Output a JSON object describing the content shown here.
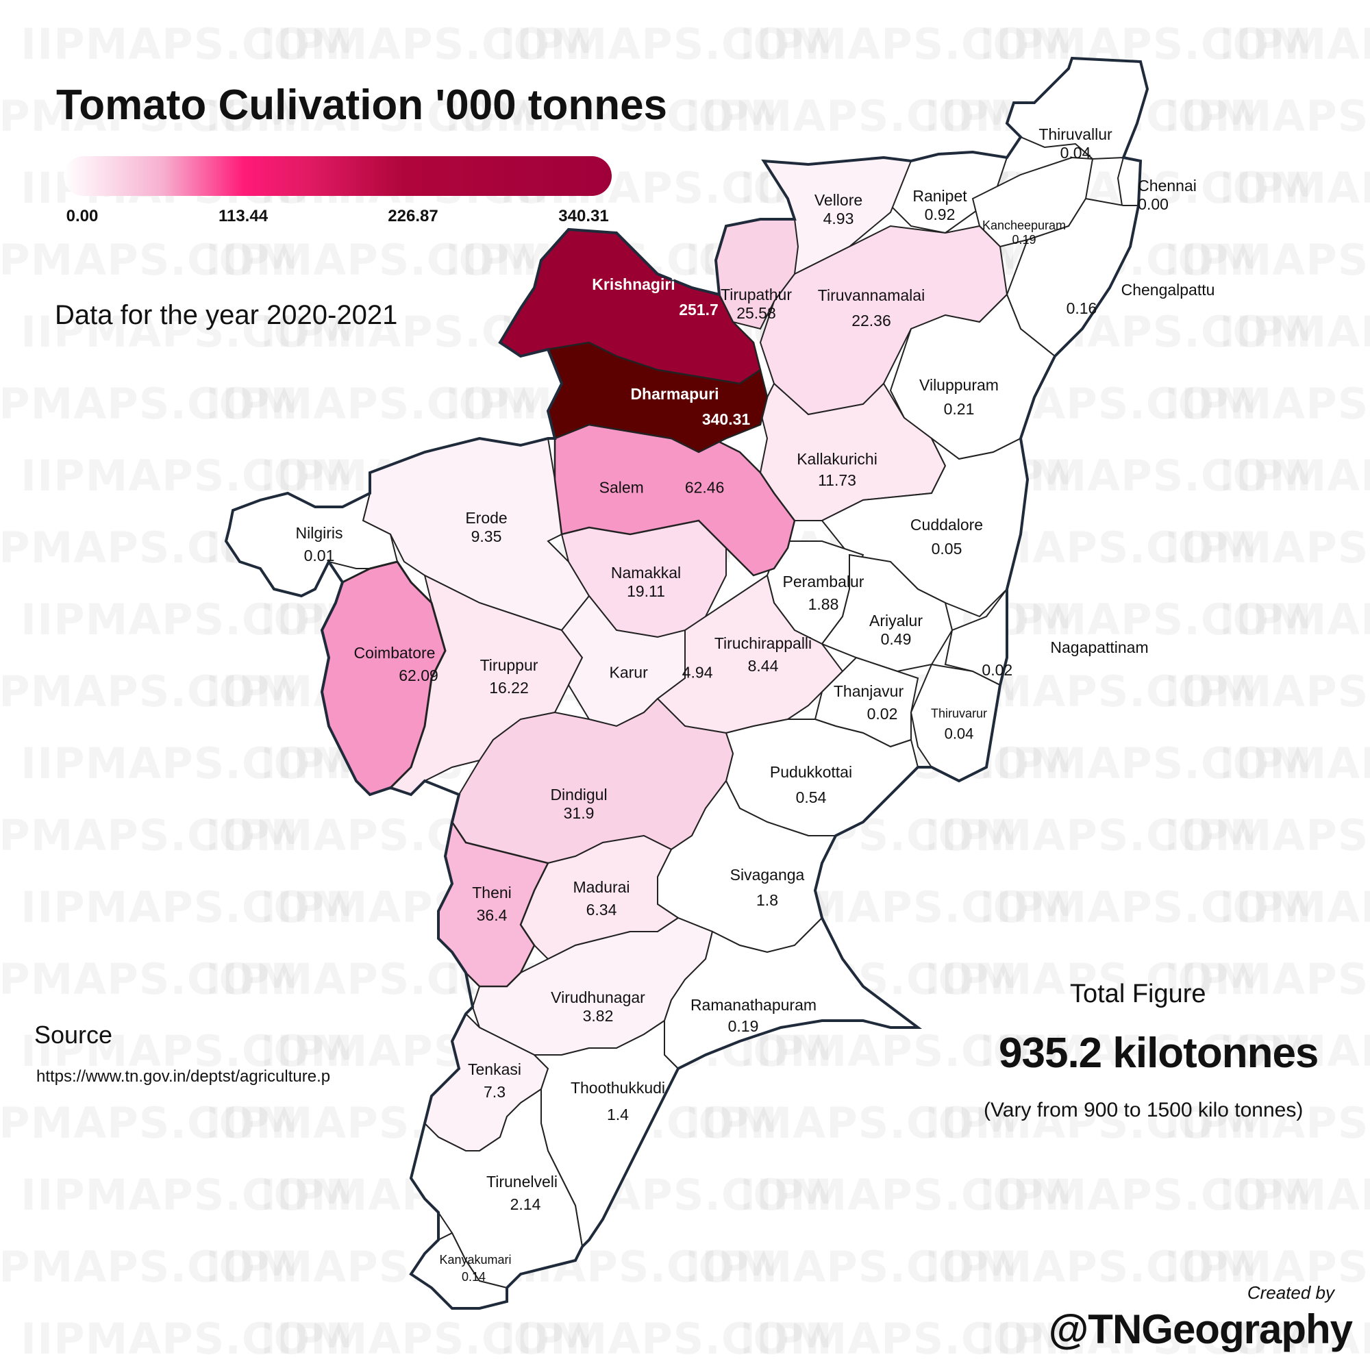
{
  "title": "Tomato Culivation '000 tonnes",
  "subtitle": "Data for the year 2020-2021",
  "watermark": "IIPMAPS.COM",
  "legend": {
    "ticks": [
      "0.00",
      "113.44",
      "226.87",
      "340.31"
    ],
    "colors": [
      "#ffffff",
      "#ff1a78",
      "#a0003a"
    ]
  },
  "districts": [
    {
      "name": "Thiruvallur",
      "value": "0.04"
    },
    {
      "name": "Chennai",
      "value": "0.00"
    },
    {
      "name": "Ranipet",
      "value": "0.92"
    },
    {
      "name": "Kancheepuram",
      "value": "0.19"
    },
    {
      "name": "Vellore",
      "value": "4.93"
    },
    {
      "name": "Chengalpattu",
      "value": "0.16"
    },
    {
      "name": "Krishnagiri",
      "value": "251.7"
    },
    {
      "name": "Tirupathur",
      "value": "25.58"
    },
    {
      "name": "Tiruvannamalai",
      "value": "22.36"
    },
    {
      "name": "Dharmapuri",
      "value": "340.31"
    },
    {
      "name": "Viluppuram",
      "value": "0.21"
    },
    {
      "name": "Kallakurichi",
      "value": "11.73"
    },
    {
      "name": "Salem",
      "value": "62.46"
    },
    {
      "name": "Erode",
      "value": "9.35"
    },
    {
      "name": "Nilgiris",
      "value": "0.01"
    },
    {
      "name": "Cuddalore",
      "value": "0.05"
    },
    {
      "name": "Namakkal",
      "value": "19.11"
    },
    {
      "name": "Perambalur",
      "value": "1.88"
    },
    {
      "name": "Ariyalur",
      "value": "0.49"
    },
    {
      "name": "Coimbatore",
      "value": "62.09"
    },
    {
      "name": "Tiruppur",
      "value": "16.22"
    },
    {
      "name": "Karur",
      "value": "4.94"
    },
    {
      "name": "Tiruchirappalli",
      "value": "8.44"
    },
    {
      "name": "Nagapattinam",
      "value": "0.02"
    },
    {
      "name": "Thanjavur",
      "value": "0.02"
    },
    {
      "name": "Thiruvarur",
      "value": "0.04"
    },
    {
      "name": "Pudukkottai",
      "value": "0.54"
    },
    {
      "name": "Dindigul",
      "value": "31.9"
    },
    {
      "name": "Sivaganga",
      "value": "1.8"
    },
    {
      "name": "Theni",
      "value": "36.4"
    },
    {
      "name": "Madurai",
      "value": "6.34"
    },
    {
      "name": "Virudhunagar",
      "value": "3.82"
    },
    {
      "name": "Ramanathapuram",
      "value": "0.19"
    },
    {
      "name": "Tenkasi",
      "value": "7.3"
    },
    {
      "name": "Thoothukkudi",
      "value": "1.4"
    },
    {
      "name": "Tirunelveli",
      "value": "2.14"
    },
    {
      "name": "Kanyakumari",
      "value": "0.14"
    }
  ],
  "source": {
    "heading": "Source",
    "url": "https://www.tn.gov.in/deptst/agriculture.p"
  },
  "total": {
    "heading": "Total Figure",
    "value": "935.2 kilotonnes",
    "note": "(Vary from 900 to 1500 kilo tonnes)"
  },
  "credit": {
    "label": "Created by",
    "handle": "@TNGeography"
  }
}
